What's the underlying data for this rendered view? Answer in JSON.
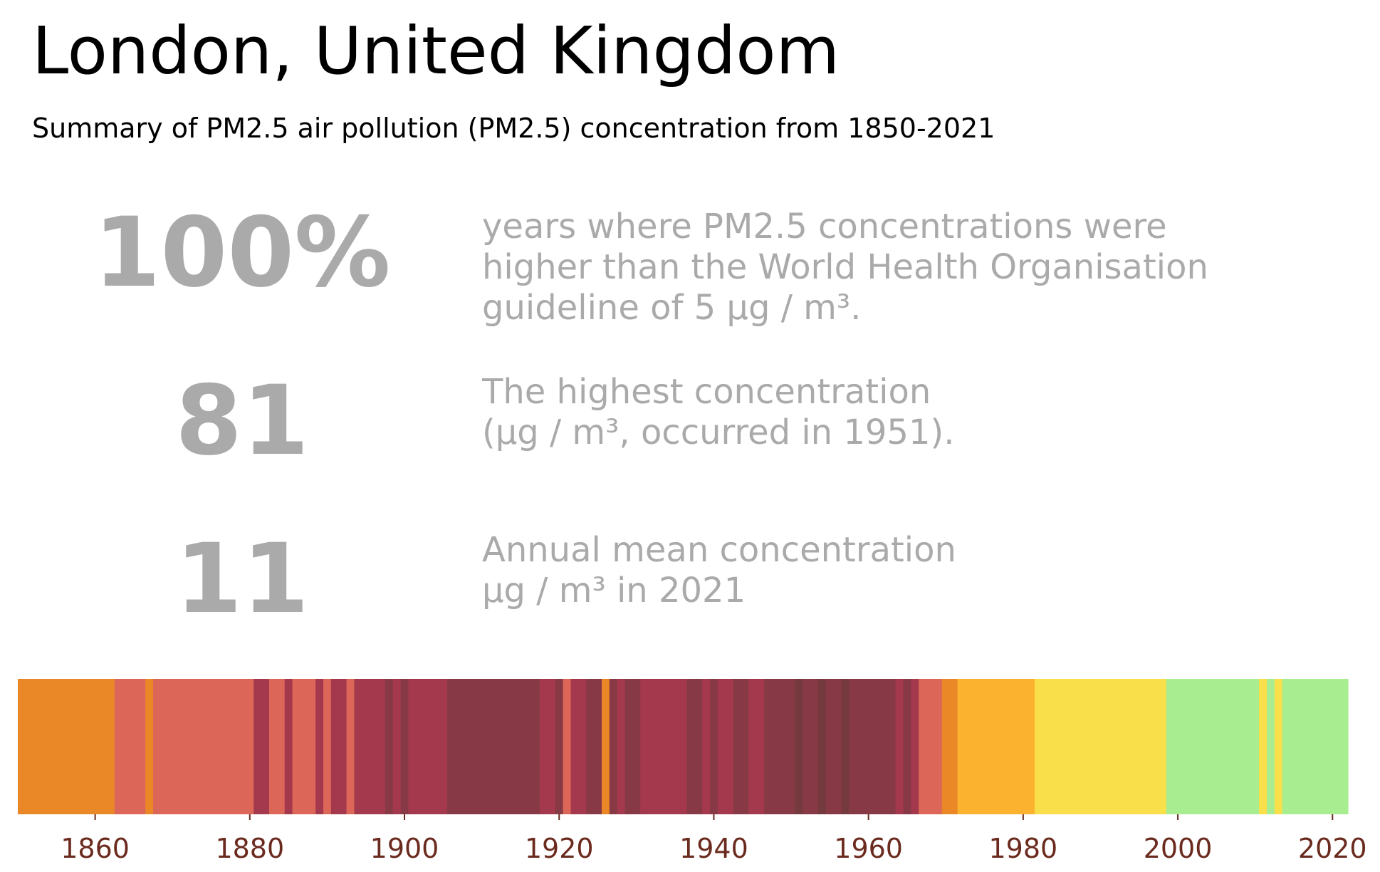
{
  "title": "London, United Kingdom",
  "subtitle": "Summary of PM2.5 air pollution (PM2.5) concentration from 1850-2021",
  "stats": [
    {
      "value": "100%",
      "lines": [
        "years where PM2.5 concentrations were",
        "higher than the World Health Organisation",
        "guideline of 5 µg / m³."
      ]
    },
    {
      "value": "81",
      "lines": [
        "The highest concentration",
        "(µg / m³, occurred in 1951)."
      ]
    },
    {
      "value": "11",
      "lines": [
        "Annual mean concentration",
        "µg / m³ in 2021"
      ]
    }
  ],
  "chart_data": {
    "type": "heatmap",
    "x_range": [
      1850,
      2022
    ],
    "xticks": [
      "1860",
      "1880",
      "1900",
      "1920",
      "1940",
      "1960",
      "1980",
      "2000",
      "2020"
    ],
    "tick_color": "#6b2a1e",
    "segments": [
      {
        "start": 1850,
        "end": 1862.5,
        "color": "#ea8726"
      },
      {
        "start": 1862.5,
        "end": 1866.5,
        "color": "#dc6758"
      },
      {
        "start": 1866.5,
        "end": 1867.5,
        "color": "#ea8726"
      },
      {
        "start": 1867.5,
        "end": 1880.5,
        "color": "#dc6758"
      },
      {
        "start": 1880.5,
        "end": 1882.5,
        "color": "#a4394d"
      },
      {
        "start": 1882.5,
        "end": 1884.5,
        "color": "#dc6758"
      },
      {
        "start": 1884.5,
        "end": 1885.5,
        "color": "#a4394d"
      },
      {
        "start": 1885.5,
        "end": 1888.5,
        "color": "#dc6758"
      },
      {
        "start": 1888.5,
        "end": 1889.5,
        "color": "#a4394d"
      },
      {
        "start": 1889.5,
        "end": 1890.5,
        "color": "#dc6758"
      },
      {
        "start": 1890.5,
        "end": 1892.5,
        "color": "#a4394d"
      },
      {
        "start": 1892.5,
        "end": 1893.5,
        "color": "#dc6758"
      },
      {
        "start": 1893.5,
        "end": 1897.5,
        "color": "#a4394d"
      },
      {
        "start": 1897.5,
        "end": 1898.5,
        "color": "#873a45"
      },
      {
        "start": 1898.5,
        "end": 1899.5,
        "color": "#a4394d"
      },
      {
        "start": 1899.5,
        "end": 1900.5,
        "color": "#873a45"
      },
      {
        "start": 1900.5,
        "end": 1905.5,
        "color": "#a4394d"
      },
      {
        "start": 1905.5,
        "end": 1917.5,
        "color": "#873a45"
      },
      {
        "start": 1917.5,
        "end": 1919.5,
        "color": "#a4394d"
      },
      {
        "start": 1919.5,
        "end": 1920.5,
        "color": "#873a45"
      },
      {
        "start": 1920.5,
        "end": 1921.5,
        "color": "#dc6758"
      },
      {
        "start": 1921.5,
        "end": 1923.5,
        "color": "#a4394d"
      },
      {
        "start": 1923.5,
        "end": 1925.5,
        "color": "#873a45"
      },
      {
        "start": 1925.5,
        "end": 1926.5,
        "color": "#ea8726"
      },
      {
        "start": 1926.5,
        "end": 1927.5,
        "color": "#873a45"
      },
      {
        "start": 1927.5,
        "end": 1928.5,
        "color": "#a4394d"
      },
      {
        "start": 1928.5,
        "end": 1930.5,
        "color": "#873a45"
      },
      {
        "start": 1930.5,
        "end": 1936.5,
        "color": "#a4394d"
      },
      {
        "start": 1936.5,
        "end": 1938.5,
        "color": "#873a45"
      },
      {
        "start": 1938.5,
        "end": 1939.5,
        "color": "#a4394d"
      },
      {
        "start": 1939.5,
        "end": 1940.5,
        "color": "#873a45"
      },
      {
        "start": 1940.5,
        "end": 1942.5,
        "color": "#a4394d"
      },
      {
        "start": 1942.5,
        "end": 1944.5,
        "color": "#873a45"
      },
      {
        "start": 1944.5,
        "end": 1946.5,
        "color": "#a4394d"
      },
      {
        "start": 1946.5,
        "end": 1950.5,
        "color": "#873a45"
      },
      {
        "start": 1950.5,
        "end": 1951.5,
        "color": "#743a3d"
      },
      {
        "start": 1951.5,
        "end": 1953.5,
        "color": "#873a45"
      },
      {
        "start": 1953.5,
        "end": 1954.5,
        "color": "#743a3d"
      },
      {
        "start": 1954.5,
        "end": 1956.5,
        "color": "#873a45"
      },
      {
        "start": 1956.5,
        "end": 1957.5,
        "color": "#743a3d"
      },
      {
        "start": 1957.5,
        "end": 1963.5,
        "color": "#873a45"
      },
      {
        "start": 1963.5,
        "end": 1964.5,
        "color": "#a4394d"
      },
      {
        "start": 1964.5,
        "end": 1965.5,
        "color": "#873a45"
      },
      {
        "start": 1965.5,
        "end": 1966.5,
        "color": "#a4394d"
      },
      {
        "start": 1966.5,
        "end": 1969.5,
        "color": "#dc6758"
      },
      {
        "start": 1969.5,
        "end": 1971.5,
        "color": "#ea8726"
      },
      {
        "start": 1971.5,
        "end": 1981.5,
        "color": "#fbb22f"
      },
      {
        "start": 1981.5,
        "end": 1998.5,
        "color": "#f9e04a"
      },
      {
        "start": 1998.5,
        "end": 2010.5,
        "color": "#a8ed8f"
      },
      {
        "start": 2010.5,
        "end": 2011.5,
        "color": "#f9e04a"
      },
      {
        "start": 2011.5,
        "end": 2012.5,
        "color": "#a8ed8f"
      },
      {
        "start": 2012.5,
        "end": 2013.5,
        "color": "#f9e04a"
      },
      {
        "start": 2013.5,
        "end": 2022,
        "color": "#a8ed8f"
      }
    ]
  }
}
